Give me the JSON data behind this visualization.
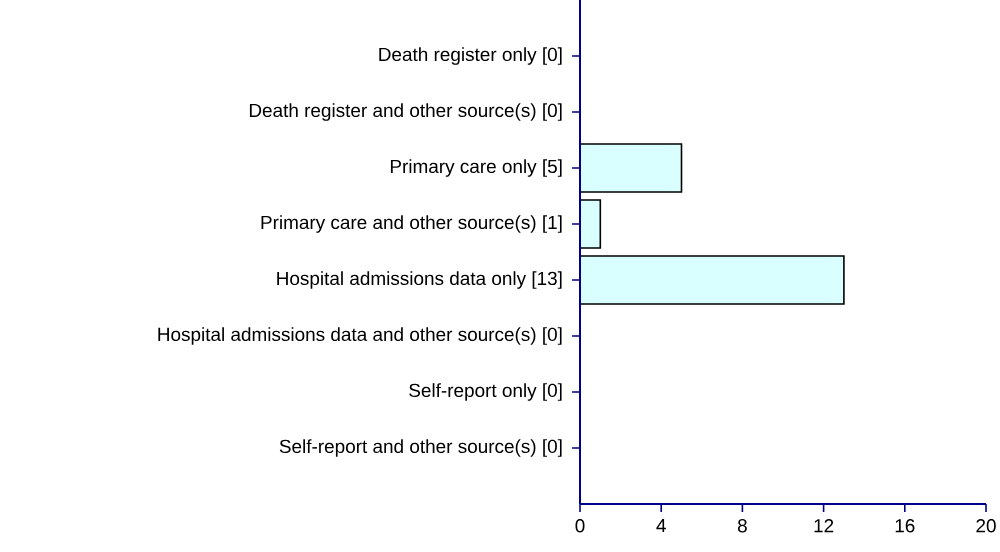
{
  "chart_data": {
    "type": "bar",
    "orientation": "horizontal",
    "categories": [
      "Death register only [0]",
      "Death register and other source(s) [0]",
      "Primary care only [5]",
      "Primary care and other source(s) [1]",
      "Hospital admissions data only [13]",
      "Hospital admissions data and other source(s) [0]",
      "Self-report only [0]",
      "Self-report and other source(s) [0]"
    ],
    "values": [
      0,
      0,
      5,
      1,
      13,
      0,
      0,
      0
    ],
    "color": "#d9ffff",
    "xlim": [
      0,
      20
    ],
    "xticks": [
      0,
      4,
      8,
      12,
      16,
      20
    ]
  }
}
